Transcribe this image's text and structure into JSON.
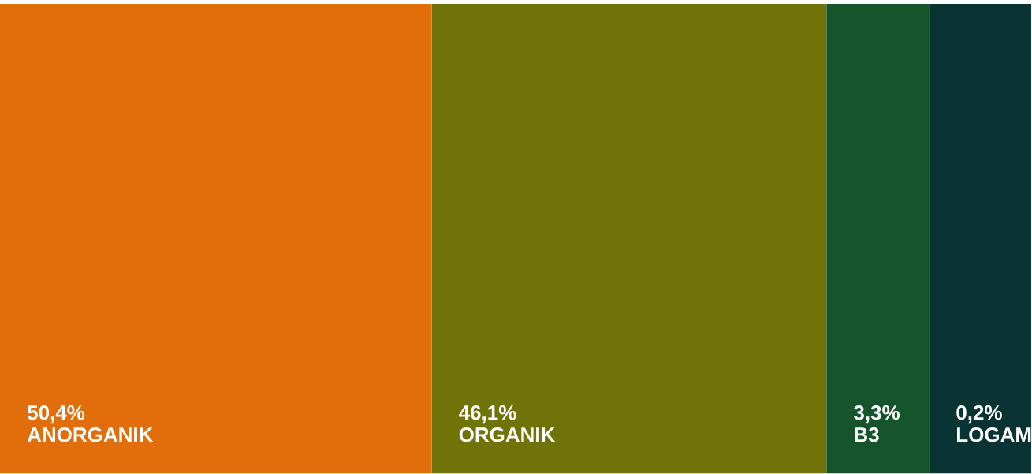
{
  "chart_data": {
    "type": "other",
    "categories": [
      "ANORGANIK",
      "ORGANIK",
      "B3",
      "LOGAM"
    ],
    "values": [
      50.4,
      46.1,
      3.3,
      0.2
    ],
    "value_labels": [
      "50,4%",
      "46,1%",
      "3,3%",
      "0,2%"
    ],
    "colors": [
      "#e16e0a",
      "#707308",
      "#16552c",
      "#0a3333"
    ]
  }
}
